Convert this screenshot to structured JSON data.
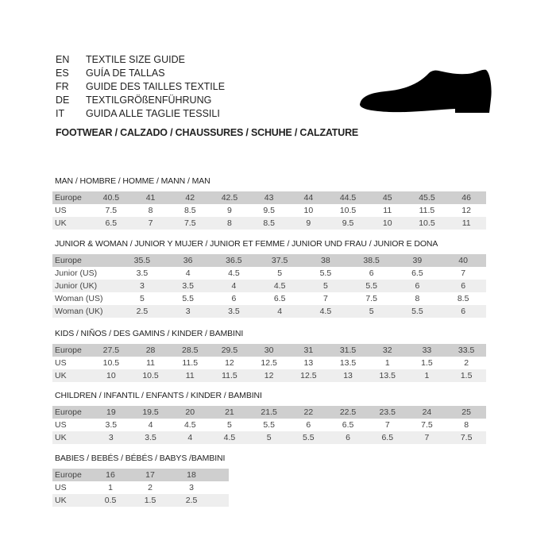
{
  "intro": [
    {
      "code": "EN",
      "text": "TEXTILE SIZE GUIDE"
    },
    {
      "code": "ES",
      "text": "GUÍA DE TALLAS"
    },
    {
      "code": "FR",
      "text": "GUIDE DES TAILLES TEXTILE"
    },
    {
      "code": "DE",
      "text": "TEXTILGRÖßENFÜHRUNG"
    },
    {
      "code": "IT",
      "text": "GUIDA ALLE TAGLIE TESSILI"
    }
  ],
  "footwear_title": "FOOTWEAR / CALZADO / CHAUSSURES / SCHUHE / CALZATURE",
  "icon": "shoe-icon",
  "sections": [
    {
      "title": "MAN / HOMBRE / HOMME / MANN / MAN",
      "rows": [
        [
          "Europe",
          "40.5",
          "41",
          "42",
          "42.5",
          "43",
          "44",
          "44.5",
          "45",
          "45.5",
          "46"
        ],
        [
          "US",
          "7.5",
          "8",
          "8.5",
          "9",
          "9.5",
          "10",
          "10.5",
          "11",
          "11.5",
          "12"
        ],
        [
          "UK",
          "6.5",
          "7",
          "7.5",
          "8",
          "8.5",
          "9",
          "9.5",
          "10",
          "10.5",
          "11"
        ]
      ]
    },
    {
      "title": "JUNIOR & WOMAN / JUNIOR Y MUJER / JUNIOR ET FEMME / JUNIOR UND FRAU / JUNIOR E DONA",
      "rows": [
        [
          "Europe",
          "35.5",
          "36",
          "36.5",
          "37.5",
          "38",
          "38.5",
          "39",
          "40"
        ],
        [
          "Junior (US)",
          "3.5",
          "4",
          "4.5",
          "5",
          "5.5",
          "6",
          "6.5",
          "7"
        ],
        [
          "Junior (UK)",
          "3",
          "3.5",
          "4",
          "4.5",
          "5",
          "5.5",
          "6",
          "6"
        ],
        [
          "Woman (US)",
          "5",
          "5.5",
          "6",
          "6.5",
          "7",
          "7.5",
          "8",
          "8.5"
        ],
        [
          "Woman (UK)",
          "2.5",
          "3",
          "3.5",
          "4",
          "4.5",
          "5",
          "5.5",
          "6"
        ]
      ]
    },
    {
      "title": "KIDS / NIÑOS / DES GAMINS / KINDER / BAMBINI",
      "rows": [
        [
          "Europe",
          "27.5",
          "28",
          "28.5",
          "29.5",
          "30",
          "31",
          "31.5",
          "32",
          "33",
          "33.5"
        ],
        [
          "US",
          "10.5",
          "11",
          "11.5",
          "12",
          "12.5",
          "13",
          "13.5",
          "1",
          "1.5",
          "2"
        ],
        [
          "UK",
          "10",
          "10.5",
          "11",
          "11.5",
          "12",
          "12.5",
          "13",
          "13.5",
          "1",
          "1.5"
        ]
      ]
    },
    {
      "title": "CHILDREN / INFANTIL / ENFANTS / KINDER / BAMBINI",
      "rows": [
        [
          "Europe",
          "19",
          "19.5",
          "20",
          "21",
          "21.5",
          "22",
          "22.5",
          "23.5",
          "24",
          "25"
        ],
        [
          "US",
          "3.5",
          "4",
          "4.5",
          "5",
          "5.5",
          "6",
          "6.5",
          "7",
          "7.5",
          "8"
        ],
        [
          "UK",
          "3",
          "3.5",
          "4",
          "4.5",
          "5",
          "5.5",
          "6",
          "6.5",
          "7",
          "7.5"
        ]
      ]
    },
    {
      "title": "BABIES  / BEBÉS / BÉBÉS / BABYS /BAMBINI",
      "rows": [
        [
          "Europe",
          "16",
          "17",
          "18"
        ],
        [
          "US",
          "1",
          "2",
          "3"
        ],
        [
          "UK",
          "0.5",
          "1.5",
          "2.5"
        ]
      ]
    }
  ]
}
